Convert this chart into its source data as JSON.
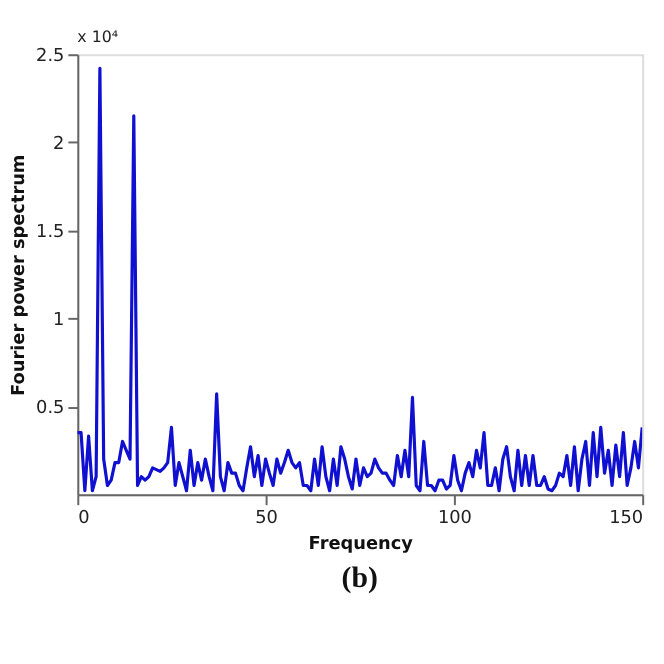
{
  "chart_data": {
    "type": "line",
    "xlabel": "Frequency",
    "ylabel": "Fourier power spectrum",
    "annotations": [
      "x 10⁴",
      "(b)"
    ],
    "xlim": [
      0,
      150
    ],
    "xticks": [
      0,
      50,
      100,
      150
    ],
    "ylim": [
      0,
      2.5
    ],
    "yticks": [
      0.5,
      1,
      1.5,
      2,
      2.5
    ],
    "grid": false,
    "marker": "none",
    "line_style": "solid",
    "x": [
      0,
      1,
      2,
      3,
      4,
      5,
      6,
      7,
      8,
      9,
      10,
      11,
      12,
      13,
      14,
      15,
      16,
      17,
      18,
      19,
      20,
      21,
      22,
      23,
      24,
      25,
      26,
      27,
      28,
      29,
      30,
      31,
      32,
      33,
      34,
      35,
      36,
      37,
      38,
      39,
      40,
      41,
      42,
      43,
      44,
      45,
      46,
      47,
      48,
      49,
      50,
      51,
      52,
      53,
      54,
      55,
      56,
      57,
      58,
      59,
      60,
      61,
      62,
      63,
      64,
      65,
      66,
      67,
      68,
      69,
      70,
      71,
      72,
      73,
      74,
      75,
      76,
      77,
      78,
      79,
      80,
      81,
      82,
      83,
      84,
      85,
      86,
      87,
      88,
      89,
      90,
      91,
      92,
      93,
      94,
      95,
      96,
      97,
      98,
      99,
      100,
      101,
      102,
      103,
      104,
      105,
      106,
      107,
      108,
      109,
      110,
      111,
      112,
      113,
      114,
      115,
      116,
      117,
      118,
      119,
      120,
      121,
      122,
      123,
      124,
      125,
      126,
      127,
      128,
      129,
      130,
      131,
      132,
      133,
      134,
      135,
      136,
      137,
      138,
      139,
      140,
      141,
      142,
      143,
      144,
      145,
      146,
      147,
      148,
      149,
      150
    ],
    "series": [
      {
        "color": "#1010d0",
        "values": [
          0.35,
          0.35,
          0.02,
          0.33,
          0.02,
          0.1,
          2.42,
          0.2,
          0.05,
          0.08,
          0.18,
          0.18,
          0.3,
          0.25,
          0.2,
          2.15,
          0.05,
          0.1,
          0.08,
          0.1,
          0.15,
          0.14,
          0.13,
          0.15,
          0.18,
          0.38,
          0.05,
          0.18,
          0.1,
          0.02,
          0.25,
          0.05,
          0.18,
          0.08,
          0.2,
          0.1,
          0.02,
          0.57,
          0.1,
          0.02,
          0.18,
          0.12,
          0.12,
          0.05,
          0.02,
          0.15,
          0.27,
          0.1,
          0.22,
          0.05,
          0.2,
          0.12,
          0.05,
          0.2,
          0.12,
          0.18,
          0.25,
          0.18,
          0.15,
          0.18,
          0.05,
          0.05,
          0.02,
          0.2,
          0.05,
          0.27,
          0.1,
          0.02,
          0.2,
          0.05,
          0.27,
          0.2,
          0.1,
          0.03,
          0.2,
          0.05,
          0.15,
          0.1,
          0.12,
          0.2,
          0.15,
          0.12,
          0.12,
          0.08,
          0.05,
          0.22,
          0.1,
          0.25,
          0.1,
          0.55,
          0.05,
          0.02,
          0.3,
          0.05,
          0.05,
          0.02,
          0.08,
          0.08,
          0.03,
          0.05,
          0.22,
          0.08,
          0.02,
          0.12,
          0.18,
          0.1,
          0.25,
          0.15,
          0.35,
          0.05,
          0.05,
          0.15,
          0.02,
          0.2,
          0.27,
          0.1,
          0.02,
          0.25,
          0.05,
          0.22,
          0.05,
          0.22,
          0.05,
          0.05,
          0.1,
          0.03,
          0.02,
          0.05,
          0.12,
          0.1,
          0.22,
          0.05,
          0.27,
          0.02,
          0.2,
          0.3,
          0.05,
          0.35,
          0.1,
          0.38,
          0.12,
          0.25,
          0.05,
          0.28,
          0.1,
          0.35,
          0.05,
          0.15,
          0.3,
          0.15,
          0.38
        ]
      }
    ]
  }
}
